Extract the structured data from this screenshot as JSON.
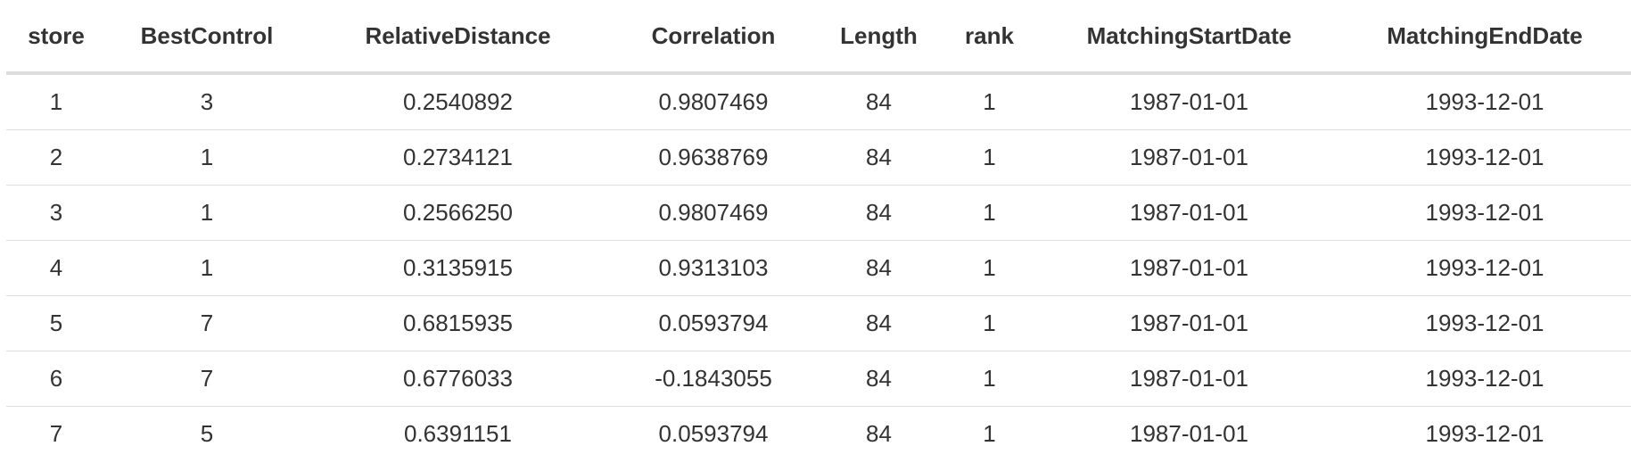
{
  "table": {
    "columns": [
      "store",
      "BestControl",
      "RelativeDistance",
      "Correlation",
      "Length",
      "rank",
      "MatchingStartDate",
      "MatchingEndDate"
    ],
    "rows": [
      [
        "1",
        "3",
        "0.2540892",
        "0.9807469",
        "84",
        "1",
        "1987-01-01",
        "1993-12-01"
      ],
      [
        "2",
        "1",
        "0.2734121",
        "0.9638769",
        "84",
        "1",
        "1987-01-01",
        "1993-12-01"
      ],
      [
        "3",
        "1",
        "0.2566250",
        "0.9807469",
        "84",
        "1",
        "1987-01-01",
        "1993-12-01"
      ],
      [
        "4",
        "1",
        "0.3135915",
        "0.9313103",
        "84",
        "1",
        "1987-01-01",
        "1993-12-01"
      ],
      [
        "5",
        "7",
        "0.6815935",
        "0.0593794",
        "84",
        "1",
        "1987-01-01",
        "1993-12-01"
      ],
      [
        "6",
        "7",
        "0.6776033",
        "-0.1843055",
        "84",
        "1",
        "1987-01-01",
        "1993-12-01"
      ],
      [
        "7",
        "5",
        "0.6391151",
        "0.0593794",
        "84",
        "1",
        "1987-01-01",
        "1993-12-01"
      ]
    ]
  }
}
